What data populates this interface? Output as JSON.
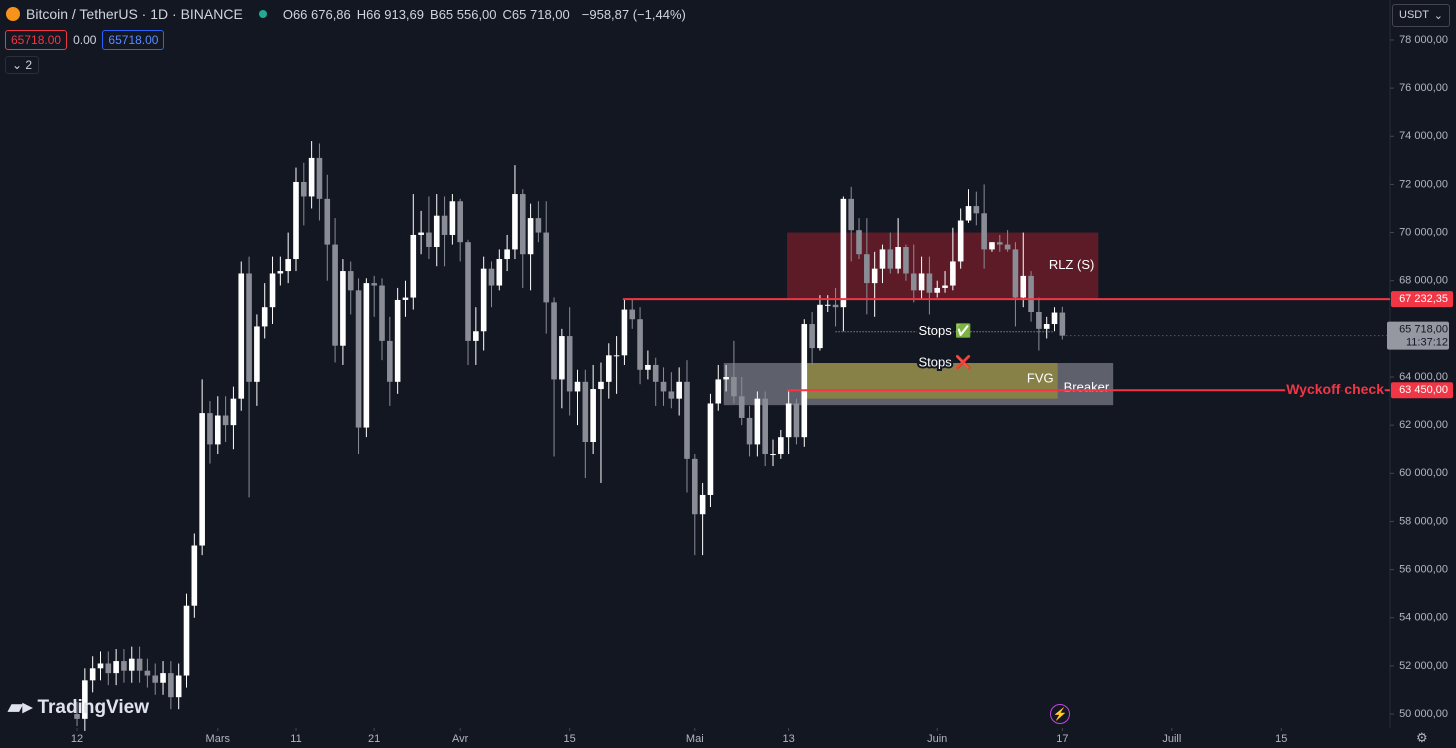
{
  "header": {
    "symbol": "Bitcoin / TetherUS · 1D · BINANCE",
    "ohlc": [
      {
        "key": "O",
        "value": "66 676,86"
      },
      {
        "key": "H",
        "value": "66 913,69"
      },
      {
        "key": "B",
        "value": "65 556,00"
      },
      {
        "key": "C",
        "value": "65 718,00"
      }
    ],
    "change": "−958,87 (−1,44%)",
    "sell": "65718.00",
    "spread": "0.00",
    "buy": "65718.00",
    "collapse": "2",
    "currency": "USDT",
    "brand": "TradingView"
  },
  "chart_data": {
    "type": "candlestick",
    "up_color": "#ffffff",
    "down_color": "#8a8d96",
    "x": [
      0,
      1,
      2,
      3,
      4,
      5,
      6,
      7,
      8,
      9,
      10,
      11,
      12,
      13,
      14,
      15,
      16,
      17,
      18,
      19,
      20,
      21,
      22,
      23,
      24,
      25,
      26,
      27,
      28,
      29,
      30,
      31,
      32,
      33,
      34,
      35,
      36,
      37,
      38,
      39,
      40,
      41,
      42,
      43,
      44,
      45,
      46,
      47,
      48,
      49,
      50,
      51,
      52,
      53,
      54,
      55,
      56,
      57,
      58,
      59,
      60,
      61,
      62,
      63,
      64,
      65,
      66,
      67,
      68,
      69,
      70,
      71,
      72,
      73,
      74,
      75,
      76,
      77,
      78,
      79,
      80,
      81,
      82,
      83,
      84,
      85,
      86,
      87,
      88,
      89,
      90,
      91,
      92,
      93,
      94,
      95,
      96,
      97,
      98,
      99,
      100,
      101,
      102,
      103,
      104,
      105,
      106,
      107,
      108,
      109,
      110,
      111,
      112,
      113,
      114,
      115,
      116,
      117,
      118,
      119,
      120,
      121,
      122,
      123,
      124,
      125,
      126
    ],
    "open": [
      50000,
      49800,
      51400,
      51900,
      52100,
      51700,
      52200,
      51800,
      52300,
      51800,
      51600,
      51300,
      51700,
      50700,
      51600,
      54500,
      57000,
      62500,
      61200,
      62400,
      62000,
      63100,
      68300,
      63800,
      66100,
      66900,
      68300,
      68400,
      68900,
      72100,
      71500,
      73100,
      71400,
      69500,
      65300,
      68400,
      67600,
      61900,
      67900,
      67800,
      65500,
      63800,
      67200,
      67300,
      69900,
      70000,
      69400,
      70700,
      69900,
      71300,
      69600,
      65500,
      65900,
      68500,
      67800,
      68900,
      69300,
      71600,
      69100,
      70600,
      70000,
      67100,
      63900,
      65700,
      63400,
      63800,
      61300,
      63500,
      63800,
      64900,
      64900,
      66800,
      66400,
      64300,
      64500,
      63800,
      63400,
      63100,
      63800,
      60600,
      58300,
      59100,
      62900,
      63900,
      64000,
      63200,
      62300,
      61200,
      63100,
      60800,
      60800,
      61500,
      62900,
      61500,
      66200,
      65200,
      67000,
      67000,
      66900,
      71400,
      70100,
      69100,
      67900,
      68500,
      69300,
      68500,
      69400,
      68300,
      67600,
      68300,
      67500,
      67700,
      67800,
      68800,
      70500,
      71100,
      70800,
      69300,
      69600,
      69500,
      69300,
      67300,
      68200,
      66700,
      66000,
      66200,
      66676.86
    ],
    "high": [
      50500,
      51900,
      52400,
      52600,
      52600,
      52700,
      52700,
      52800,
      52800,
      52300,
      52100,
      52200,
      52200,
      52100,
      55000,
      57500,
      63900,
      63000,
      63200,
      63200,
      63600,
      68800,
      69000,
      66600,
      67900,
      69000,
      69000,
      70000,
      72700,
      72900,
      73800,
      73700,
      72400,
      70600,
      68900,
      68800,
      68100,
      68100,
      68200,
      68100,
      66500,
      67700,
      68000,
      71600,
      70900,
      71500,
      71600,
      71500,
      71600,
      71400,
      69700,
      66900,
      69000,
      68800,
      69300,
      69900,
      72800,
      71800,
      71200,
      71300,
      71300,
      67300,
      66000,
      66900,
      64300,
      64300,
      64500,
      64600,
      65400,
      65700,
      67200,
      67200,
      66900,
      65100,
      64800,
      64400,
      64200,
      64400,
      64700,
      60800,
      59600,
      63300,
      64500,
      64500,
      65500,
      64000,
      62800,
      63400,
      63400,
      61400,
      61800,
      63400,
      63100,
      66400,
      66700,
      67400,
      67400,
      67700,
      71500,
      71900,
      70600,
      70600,
      69200,
      69500,
      70000,
      70600,
      69500,
      69500,
      69000,
      69000,
      68000,
      68400,
      70200,
      71000,
      71800,
      71700,
      72000,
      69600,
      69900,
      70100,
      69600,
      70000,
      68400,
      67300,
      66500,
      66900,
      66913.69
    ],
    "low": [
      49500,
      49300,
      50900,
      51400,
      51200,
      51200,
      51300,
      51300,
      51300,
      51100,
      50800,
      50800,
      50200,
      50200,
      51100,
      54000,
      56600,
      60400,
      60800,
      61300,
      61000,
      62600,
      59000,
      62800,
      65600,
      66200,
      67800,
      67900,
      68400,
      70300,
      71000,
      70500,
      68000,
      64600,
      64500,
      66600,
      60800,
      61500,
      66500,
      64700,
      62800,
      63300,
      66500,
      66800,
      69100,
      68900,
      68600,
      68600,
      69500,
      68800,
      64500,
      64500,
      65100,
      66900,
      67600,
      68400,
      68900,
      67700,
      67600,
      69600,
      65800,
      60700,
      62700,
      62400,
      62000,
      59800,
      60800,
      59600,
      63100,
      63300,
      64500,
      66000,
      63700,
      63900,
      62800,
      62800,
      62700,
      62400,
      59200,
      56600,
      56600,
      58600,
      62600,
      63400,
      62900,
      62000,
      60700,
      60700,
      60300,
      60300,
      60600,
      60800,
      61200,
      61100,
      64500,
      65100,
      66700,
      66100,
      65900,
      68800,
      68900,
      66600,
      66500,
      67900,
      68300,
      68300,
      68000,
      67100,
      67200,
      66600,
      67300,
      67500,
      67600,
      68500,
      70400,
      70300,
      68500,
      69200,
      69200,
      69200,
      66100,
      66900,
      66300,
      65100,
      65600,
      65900,
      65556
    ],
    "close": [
      49800,
      51400,
      51900,
      52100,
      51700,
      52200,
      51800,
      52300,
      51800,
      51600,
      51300,
      51700,
      50700,
      51600,
      54500,
      57000,
      62500,
      61200,
      62400,
      62000,
      63100,
      68300,
      63800,
      66100,
      66900,
      68300,
      68400,
      68900,
      72100,
      71500,
      73100,
      71400,
      69500,
      65300,
      68400,
      67600,
      61900,
      67900,
      67800,
      65500,
      63800,
      67200,
      67300,
      69900,
      70000,
      69400,
      70700,
      69900,
      71300,
      69600,
      65500,
      65900,
      68500,
      67800,
      68900,
      69300,
      71600,
      69100,
      70600,
      70000,
      67100,
      63900,
      65700,
      63400,
      63800,
      61300,
      63500,
      63800,
      64900,
      64900,
      66800,
      66400,
      64300,
      64500,
      63800,
      63400,
      63100,
      63800,
      60600,
      58300,
      59100,
      62900,
      63900,
      64000,
      63200,
      62300,
      61200,
      63100,
      60800,
      60800,
      61500,
      62900,
      61500,
      66200,
      65200,
      67000,
      67000,
      66900,
      71400,
      70100,
      69100,
      67900,
      68500,
      69300,
      68500,
      69400,
      68300,
      67600,
      68300,
      67500,
      67700,
      67800,
      68800,
      70500,
      71100,
      70800,
      69300,
      69600,
      69500,
      69300,
      67300,
      68200,
      66700,
      66000,
      66200,
      66676.86,
      65718
    ],
    "xlim": [
      -9.85,
      167.9
    ],
    "ylim": [
      49420,
      79660
    ],
    "xticks": [
      {
        "value": 0,
        "label": "12"
      },
      {
        "value": 18,
        "label": "Mars"
      },
      {
        "value": 28,
        "label": "11"
      },
      {
        "value": 38,
        "label": "21"
      },
      {
        "value": 49,
        "label": "Avr"
      },
      {
        "value": 63,
        "label": "15"
      },
      {
        "value": 79,
        "label": "Mai"
      },
      {
        "value": 91,
        "label": "13"
      },
      {
        "value": 110,
        "label": "Juin"
      },
      {
        "value": 126,
        "label": "17"
      },
      {
        "value": 140,
        "label": "Juill"
      },
      {
        "value": 154,
        "label": "15"
      }
    ],
    "yticks": [
      {
        "value": 50000,
        "label": "50 000,00"
      },
      {
        "value": 52000,
        "label": "52 000,00"
      },
      {
        "value": 54000,
        "label": "54 000,00"
      },
      {
        "value": 56000,
        "label": "56 000,00"
      },
      {
        "value": 58000,
        "label": "58 000,00"
      },
      {
        "value": 60000,
        "label": "60 000,00"
      },
      {
        "value": 62000,
        "label": "62 000,00"
      },
      {
        "value": 64000,
        "label": "64 000,00"
      },
      {
        "value": 66000,
        "label": "66 000,00"
      },
      {
        "value": 68000,
        "label": "68 000,00"
      },
      {
        "value": 70000,
        "label": "70 000,00"
      },
      {
        "value": 72000,
        "label": "72 000,00"
      },
      {
        "value": 74000,
        "label": "74 000,00"
      },
      {
        "value": 76000,
        "label": "76 000,00"
      },
      {
        "value": 78000,
        "label": "78 000,00"
      }
    ],
    "zones": [
      {
        "label": "Breaker",
        "x": [
          82.7,
          132.5
        ],
        "y": [
          62830,
          64580
        ],
        "color": "rgba(170,172,182,0.5)"
      },
      {
        "label": "FVG",
        "x": [
          93.2,
          125.4
        ],
        "y": [
          63100,
          64580
        ],
        "color": "rgba(150,140,60,0.75)"
      },
      {
        "label": "RLZ (S)",
        "x": [
          90.8,
          130.6
        ],
        "y": [
          67240,
          70000
        ],
        "color": "rgba(125,30,42,0.7)"
      }
    ],
    "levels": [
      {
        "value": 67232.35,
        "label": "67 232,35",
        "x0": 69.8,
        "color": "#f23645"
      },
      {
        "value": 63450,
        "label": "63 450,00",
        "x0": 90.8,
        "color": "#f23645",
        "text": "Wyckoff check"
      }
    ],
    "stops": [
      {
        "label": "Stops ✅",
        "value": 65880,
        "x": [
          97,
          125
        ]
      },
      {
        "label": "Stops ❌",
        "value": 64580,
        "x": [
          97,
          125
        ]
      }
    ],
    "last": {
      "value": 65718,
      "label": "65 718,00",
      "timer": "11:37:12"
    }
  }
}
